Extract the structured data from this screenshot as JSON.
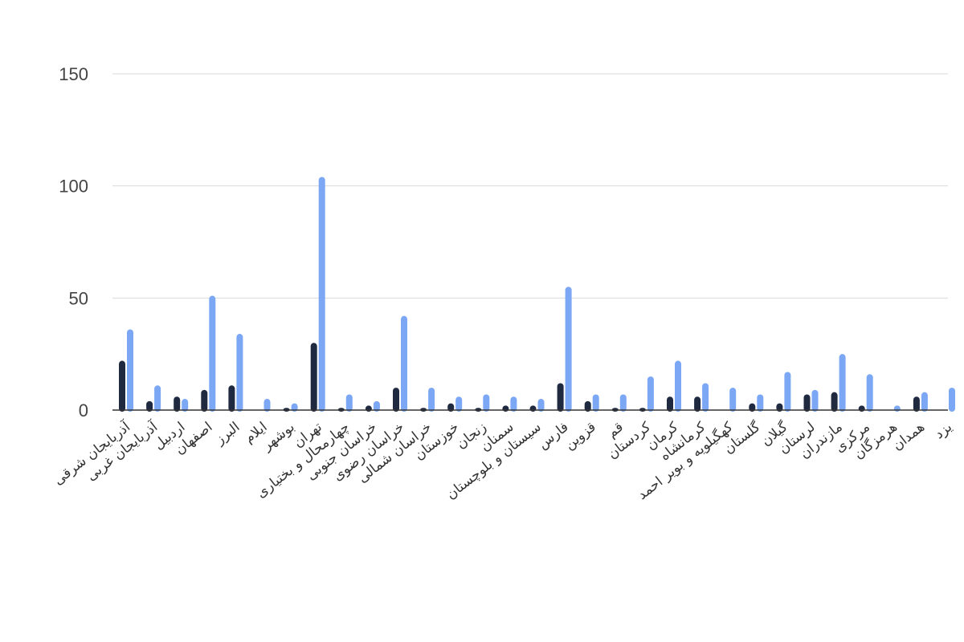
{
  "chart_data": {
    "type": "bar",
    "title": "",
    "xlabel": "",
    "ylabel": "",
    "ylim": [
      0,
      150
    ],
    "yticks": [
      0,
      50,
      100,
      150
    ],
    "grid": true,
    "legend": "none",
    "colors": {
      "series_1": "#1f2a40",
      "series_2": "#7ba7f5",
      "grid": "#d9d9d9",
      "axis": "#333333"
    },
    "categories": [
      "آذربایجان شرقی",
      "آذربایجان غربی",
      "اردبیل",
      "اصفهان",
      "البرز",
      "ایلام",
      "بوشهر",
      "تهران",
      "چهارمحال و بختیاری",
      "خراسان جنوبی",
      "خراسان رضوی",
      "خراسان شمالی",
      "خوزستان",
      "زنجان",
      "سمنان",
      "سیستان و بلوچستان",
      "فارس",
      "قزوین",
      "قم",
      "کردستان",
      "کرمان",
      "کرمانشاه",
      "کهگیلویه و بویر احمد",
      "گلستان",
      "گیلان",
      "لرستان",
      "مازندران",
      "مرکزی",
      "هرمزگان",
      "همدان",
      "یزد"
    ],
    "series": [
      {
        "values": [
          22,
          4,
          6,
          9,
          11,
          0,
          1,
          30,
          1,
          2,
          10,
          1,
          3,
          1,
          2,
          2,
          12,
          4,
          1,
          1,
          6,
          6,
          0,
          3,
          3,
          7,
          8,
          2,
          0,
          6,
          0
        ]
      },
      {
        "values": [
          36,
          11,
          5,
          51,
          34,
          5,
          3,
          104,
          7,
          4,
          42,
          10,
          6,
          7,
          6,
          5,
          55,
          7,
          7,
          15,
          22,
          12,
          10,
          7,
          17,
          9,
          25,
          16,
          2,
          8,
          10
        ]
      }
    ]
  }
}
